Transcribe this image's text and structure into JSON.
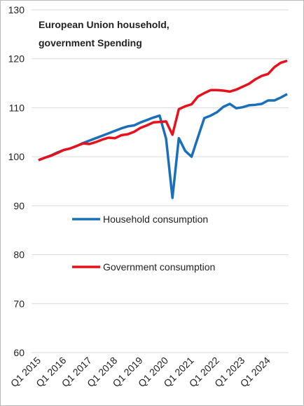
{
  "chart_data": {
    "type": "line",
    "title": "European Union household,\ngovernment Spending",
    "categories": [
      "Q1 2015",
      null,
      null,
      null,
      "Q1 2016",
      null,
      null,
      null,
      "Q1 2017",
      null,
      null,
      null,
      "Q1 2018",
      null,
      null,
      null,
      "Q1 2019",
      null,
      null,
      null,
      "Q1 2020",
      null,
      null,
      null,
      "Q1 2021",
      null,
      null,
      null,
      "Q1 2022",
      null,
      null,
      null,
      "Q1 2023",
      null,
      null,
      null,
      "Q1 2024",
      null,
      null,
      null
    ],
    "series": [
      {
        "name": "Household consumption",
        "color": "#1a6fba",
        "values": [
          99.3,
          99.8,
          100.3,
          100.9,
          101.4,
          101.7,
          102.2,
          102.8,
          103.3,
          103.8,
          104.3,
          104.8,
          105.3,
          105.8,
          106.2,
          106.4,
          107.0,
          107.5,
          108.0,
          108.4,
          103.7,
          91.6,
          103.8,
          101.2,
          100.0,
          104.0,
          107.9,
          108.4,
          109.1,
          110.2,
          110.8,
          109.9,
          110.1,
          110.5,
          110.6,
          110.8,
          111.5,
          111.5,
          112.1,
          112.8
        ]
      },
      {
        "name": "Government consumption",
        "color": "#e8101a",
        "values": [
          99.3,
          99.8,
          100.2,
          100.8,
          101.4,
          101.7,
          102.2,
          102.7,
          102.6,
          103.0,
          103.5,
          103.9,
          103.8,
          104.4,
          104.6,
          105.1,
          105.9,
          106.4,
          107.0,
          107.1,
          107.2,
          104.5,
          109.7,
          110.3,
          110.7,
          112.3,
          113.0,
          113.6,
          113.6,
          113.5,
          113.3,
          113.7,
          114.3,
          114.9,
          115.8,
          116.5,
          116.9,
          118.3,
          119.2,
          119.6
        ]
      }
    ],
    "ylim": [
      60,
      130
    ],
    "yticks": [
      60,
      70,
      80,
      90,
      100,
      110,
      120,
      130
    ],
    "grid": true
  }
}
